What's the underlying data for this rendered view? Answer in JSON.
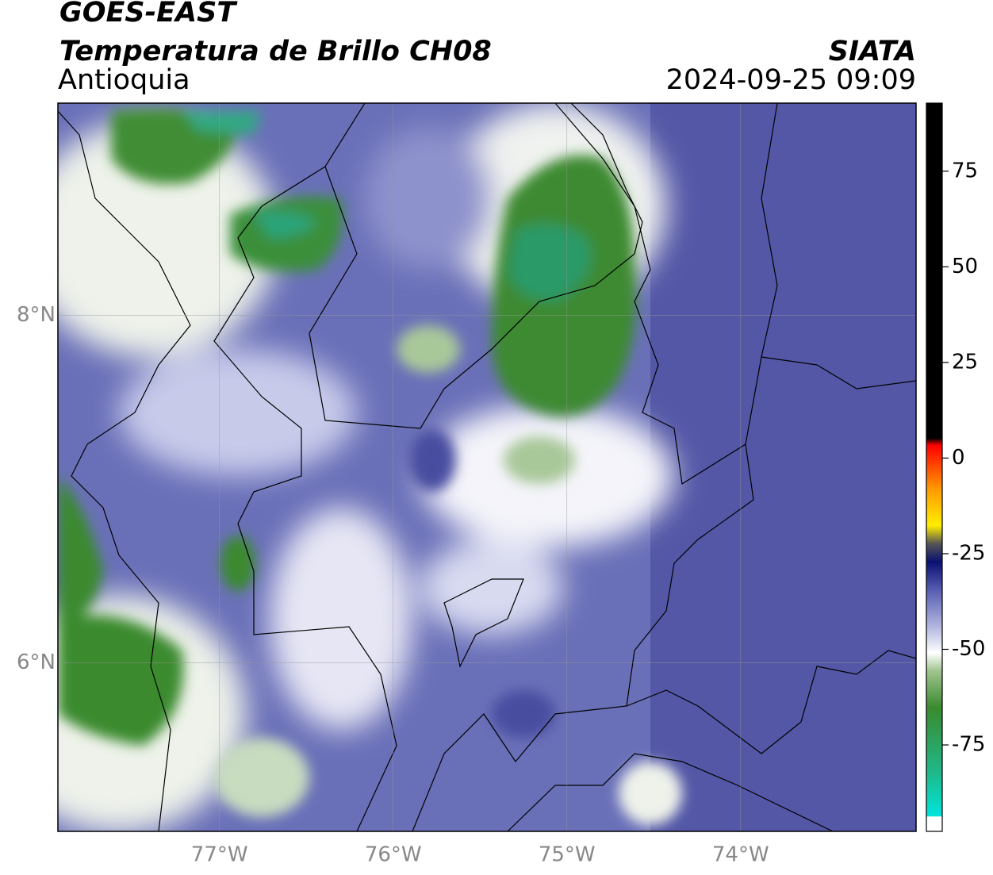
{
  "header": {
    "title": "GOES-EAST",
    "subtitle": "Temperatura de Brillo CH08",
    "region": "Antioquia",
    "source": "SIATA",
    "datetime": "2024-09-25 09:09"
  },
  "map": {
    "lon_lim": [
      -77.93,
      -72.99
    ],
    "lat_lim": [
      5.03,
      9.22
    ],
    "lon_ticks": [
      {
        "value": -77,
        "label": "77°W"
      },
      {
        "value": -76,
        "label": "76°W"
      },
      {
        "value": -75,
        "label": "75°W"
      },
      {
        "value": -74,
        "label": "74°W"
      }
    ],
    "lat_ticks": [
      {
        "value": 8,
        "label": "8°N"
      },
      {
        "value": 6,
        "label": "6°N"
      }
    ]
  },
  "colorbar": {
    "lim": [
      -97.6,
      92.8
    ],
    "ticks": [
      75,
      50,
      25,
      0,
      -25,
      -50,
      -75
    ]
  }
}
